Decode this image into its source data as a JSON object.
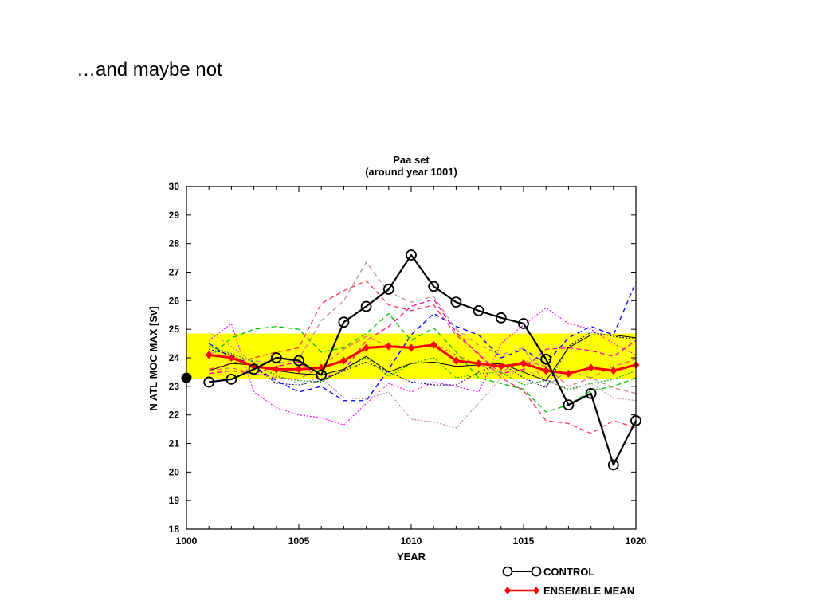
{
  "slide": {
    "title": "…and maybe not"
  },
  "chart_data": {
    "type": "line",
    "title": "Paa set",
    "subtitle": "(around year 1001)",
    "xlabel": "YEAR",
    "ylabel": "N ATL MOC MAX  [Sv]",
    "xlim": [
      1000,
      1020
    ],
    "ylim": [
      18,
      30
    ],
    "xticks": [
      1000,
      1005,
      1010,
      1015,
      1020
    ],
    "yticks": [
      18,
      19,
      20,
      21,
      22,
      23,
      24,
      25,
      26,
      27,
      28,
      29,
      30
    ],
    "grid": false,
    "legend_position": "bottom-right",
    "band": {
      "y0": 23.25,
      "y1": 24.85,
      "color": "#ffff00"
    },
    "start_marker": {
      "x": 1000,
      "y": 23.3
    },
    "x": [
      1001,
      1002,
      1003,
      1004,
      1005,
      1006,
      1007,
      1008,
      1009,
      1010,
      1011,
      1012,
      1013,
      1014,
      1015,
      1016,
      1017,
      1018,
      1019,
      1020
    ],
    "series": [
      {
        "name": "CONTROL",
        "color": "#000000",
        "style": "solid-circle",
        "values": [
          23.15,
          23.25,
          23.6,
          24.0,
          23.9,
          23.4,
          25.25,
          25.8,
          26.4,
          27.6,
          26.5,
          25.95,
          25.65,
          25.4,
          25.2,
          23.95,
          22.35,
          22.75,
          20.25,
          21.8
        ]
      },
      {
        "name": "ENSEMBLE MEAN",
        "color": "#ff0000",
        "style": "solid-diamond",
        "values": [
          24.1,
          24.0,
          23.7,
          23.6,
          23.6,
          23.65,
          23.9,
          24.35,
          24.4,
          24.35,
          24.45,
          23.9,
          23.8,
          23.7,
          23.8,
          23.55,
          23.45,
          23.65,
          23.55,
          23.75
        ]
      },
      {
        "color": "#ff00ff",
        "style": "dotted",
        "values": [
          24.6,
          25.2,
          22.8,
          22.25,
          22.0,
          21.9,
          21.65,
          22.4,
          23.1,
          22.8,
          23.15,
          23.0,
          22.8,
          24.5,
          25.15,
          25.75,
          25.2,
          25.0,
          24.5,
          24.1
        ]
      },
      {
        "color": "#c08080",
        "style": "dotted",
        "values": [
          24.9,
          24.4,
          23.8,
          23.4,
          23.1,
          23.3,
          22.6,
          22.55,
          22.8,
          21.85,
          21.75,
          21.55,
          22.4,
          23.3,
          23.6,
          23.25,
          22.85,
          23.1,
          22.6,
          22.5
        ]
      },
      {
        "color": "#0000ff",
        "style": "dashed",
        "values": [
          24.5,
          24.0,
          23.7,
          23.2,
          22.8,
          23.0,
          22.5,
          22.5,
          23.6,
          24.8,
          25.55,
          25.1,
          24.8,
          24.0,
          24.3,
          23.8,
          24.7,
          25.1,
          24.8,
          26.65
        ]
      },
      {
        "color": "#00c000",
        "style": "dashed",
        "values": [
          24.0,
          24.7,
          25.0,
          25.1,
          25.0,
          24.2,
          24.35,
          24.85,
          25.55,
          24.6,
          25.05,
          24.2,
          23.3,
          23.1,
          22.9,
          22.1,
          22.35,
          22.85,
          23.0,
          23.3
        ]
      },
      {
        "color": "#ff3355",
        "style": "dashed",
        "values": [
          23.6,
          23.8,
          24.0,
          24.2,
          24.35,
          25.9,
          26.35,
          26.7,
          25.85,
          25.65,
          25.85,
          24.8,
          24.15,
          23.3,
          22.85,
          21.8,
          21.7,
          21.35,
          21.8,
          21.55
        ]
      },
      {
        "color": "#c09090",
        "style": "dashed",
        "values": [
          24.2,
          24.0,
          23.9,
          23.8,
          23.95,
          25.3,
          26.0,
          27.35,
          26.3,
          25.95,
          26.15,
          25.0,
          24.45,
          24.1,
          24.35,
          23.0,
          23.55,
          23.3,
          22.95,
          22.75
        ]
      },
      {
        "color": "#ff00aa",
        "style": "dashed",
        "values": [
          23.45,
          23.55,
          23.45,
          23.7,
          23.85,
          23.25,
          23.55,
          24.6,
          25.1,
          25.8,
          26.05,
          24.9,
          24.1,
          23.45,
          23.6,
          24.3,
          24.35,
          24.25,
          24.05,
          24.6
        ]
      },
      {
        "color": "#00aa00",
        "style": "dotted",
        "values": [
          24.4,
          24.15,
          23.85,
          23.35,
          23.2,
          23.15,
          23.6,
          24.0,
          23.35,
          23.8,
          24.0,
          23.3,
          23.45,
          23.5,
          23.05,
          23.2,
          22.9,
          23.1,
          23.25,
          23.55
        ]
      },
      {
        "color": "#000066",
        "style": "dotted",
        "values": [
          24.3,
          24.1,
          23.7,
          23.1,
          23.05,
          23.2,
          23.55,
          23.85,
          23.5,
          23.15,
          23.05,
          23.05,
          23.5,
          23.8,
          23.3,
          22.95,
          24.4,
          24.9,
          24.75,
          24.65
        ]
      },
      {
        "color": "#000000",
        "style": "solid-thin",
        "values": [
          23.55,
          23.8,
          23.75,
          23.55,
          23.45,
          23.4,
          23.6,
          24.05,
          23.5,
          23.8,
          23.85,
          23.7,
          23.75,
          23.8,
          23.5,
          23.2,
          24.35,
          24.8,
          24.8,
          24.7
        ]
      },
      {
        "color": "#e07070",
        "style": "dashed",
        "values": [
          23.55,
          23.65,
          23.45,
          23.3,
          23.25,
          23.7,
          24.3,
          24.75,
          24.4,
          24.35,
          24.5,
          24.1,
          23.75,
          23.5,
          23.9,
          23.7,
          23.0,
          23.3,
          23.7,
          23.95
        ]
      }
    ]
  }
}
